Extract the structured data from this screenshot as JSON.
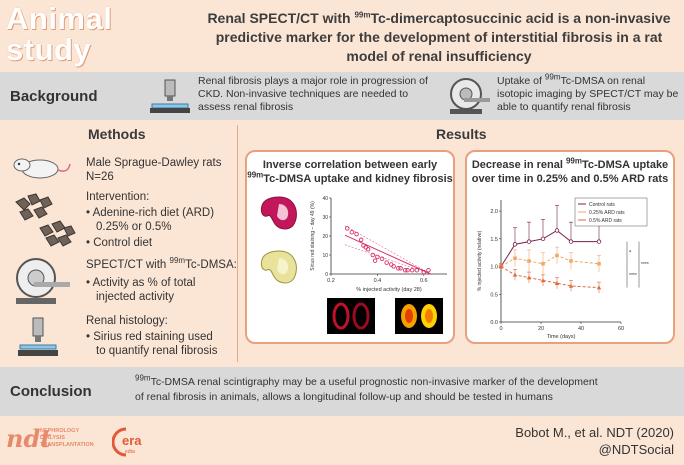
{
  "header": {
    "tag_line1": "Animal",
    "tag_line2": "study",
    "title_pre": "Renal SPECT/CT with ",
    "title_sup": "99m",
    "title_post": "Tc-dimercaptosuccinic acid is a non-invasive predictive marker for the development of interstitial fibrosis in a rat model of renal insufficiency"
  },
  "background": {
    "label": "Background",
    "text_left": "Renal fibrosis plays a major role in progression of CKD. Non-invasive techniques are needed to assess renal fibrosis",
    "text_right_pre": "Uptake of ",
    "text_right_sup": "99m",
    "text_right_post": "Tc-DMSA on renal isotopic imaging by SPECT/CT may be able to quantify renal fibrosis"
  },
  "methods": {
    "title": "Methods",
    "rats": "Male Sprague-Dawley rats",
    "n": "N=26",
    "intervention": "Intervention:",
    "int_item1": "• Adenine-rich diet (ARD)",
    "int_item1b": "0.25% or 0.5%",
    "int_item2": "• Control diet",
    "spect_pre": "SPECT/CT with ",
    "spect_sup": "99m",
    "spect_post": "Tc-DMSA:",
    "spect_item1": "• Activity as % of total",
    "spect_item1b": "injected activity",
    "histo": "Renal histology:",
    "histo_item1": "• Sirius red staining used",
    "histo_item1b": "to quantify renal fibrosis"
  },
  "results": {
    "title": "Results",
    "box1_line1": "Inverse correlation between early",
    "box1_line2_sup": "99m",
    "box1_line2": "Tc-DMSA uptake and kidney fibrosis",
    "box2_line1_pre": "Decrease in renal ",
    "box2_line1_sup": "99m",
    "box2_line1_post": "Tc-DMSA uptake",
    "box2_line2": "over time in 0.25% and 0.5% ARD rats"
  },
  "conclusion": {
    "label": "Conclusion",
    "sup": "99m",
    "text_line1": "Tc-DMSA renal scintigraphy may be a useful prognostic non-invasive marker of the development",
    "text_line2": "of renal fibrosis in animals, allows a longitudinal follow-up and should be tested in humans"
  },
  "footer": {
    "ref": "Bobot M., et al. NDT (2020)",
    "handle": "@NDTSocial",
    "ndt_logo": "ndt",
    "ndt_sub1": "NEPHROLOGY",
    "ndt_sub2": "DIALYSIS",
    "ndt_sub3": "TRANSPLANTATION",
    "era_logo": "era",
    "era_sub": "edta"
  },
  "chart_data": [
    {
      "type": "scatter",
      "title": "",
      "xlabel": "% injected activity (day 28)",
      "ylabel": "Sirius red staining – day 49 (%)",
      "xticks": [
        "0.2",
        "0.4",
        "0.6"
      ],
      "yticks": [
        "0",
        "10",
        "20",
        "30",
        "40"
      ],
      "xlim": [
        0.2,
        0.7
      ],
      "ylim": [
        0,
        40
      ],
      "points": [
        [
          0.27,
          24
        ],
        [
          0.29,
          22
        ],
        [
          0.31,
          21
        ],
        [
          0.33,
          18
        ],
        [
          0.34,
          15
        ],
        [
          0.36,
          13
        ],
        [
          0.38,
          10
        ],
        [
          0.4,
          9
        ],
        [
          0.42,
          8
        ],
        [
          0.44,
          6
        ],
        [
          0.46,
          5
        ],
        [
          0.47,
          4
        ],
        [
          0.49,
          3
        ],
        [
          0.5,
          3
        ],
        [
          0.52,
          2
        ],
        [
          0.53,
          2
        ],
        [
          0.55,
          2
        ],
        [
          0.57,
          2
        ],
        [
          0.6,
          1
        ],
        [
          0.62,
          2
        ],
        [
          0.35,
          14
        ],
        [
          0.39,
          7
        ]
      ],
      "color": "#d6336c"
    },
    {
      "type": "line",
      "title": "",
      "xlabel": "Time (days)",
      "ylabel": "% injected activity (relative)",
      "xticks": [
        "0",
        "20",
        "40",
        "60"
      ],
      "yticks": [
        "0.0",
        "0.5",
        "1.0",
        "1.5",
        "2.0"
      ],
      "xlim": [
        0,
        60
      ],
      "ylim": [
        0,
        2.2
      ],
      "x": [
        0,
        7,
        14,
        21,
        28,
        35,
        49
      ],
      "series": [
        {
          "name": "Control rats",
          "color": "#7a1f4a",
          "values": [
            1.0,
            1.4,
            1.45,
            1.5,
            1.65,
            1.45,
            1.45
          ],
          "err": [
            0.05,
            0.3,
            0.35,
            0.35,
            0.45,
            0.35,
            0.4
          ]
        },
        {
          "name": "0.25% ARD rats",
          "color": "#f2a86a",
          "values": [
            1.0,
            1.15,
            1.1,
            1.05,
            1.2,
            1.1,
            1.05
          ],
          "err": [
            0.05,
            0.15,
            0.2,
            0.2,
            0.15,
            0.15,
            0.15
          ]
        },
        {
          "name": "0.5% ARD rats",
          "color": "#e06a3a",
          "values": [
            1.0,
            0.85,
            0.8,
            0.75,
            0.7,
            0.65,
            0.62
          ],
          "err": [
            0.05,
            0.1,
            0.1,
            0.1,
            0.1,
            0.1,
            0.1
          ]
        }
      ],
      "annotations": [
        "*",
        "****",
        "****"
      ]
    }
  ]
}
